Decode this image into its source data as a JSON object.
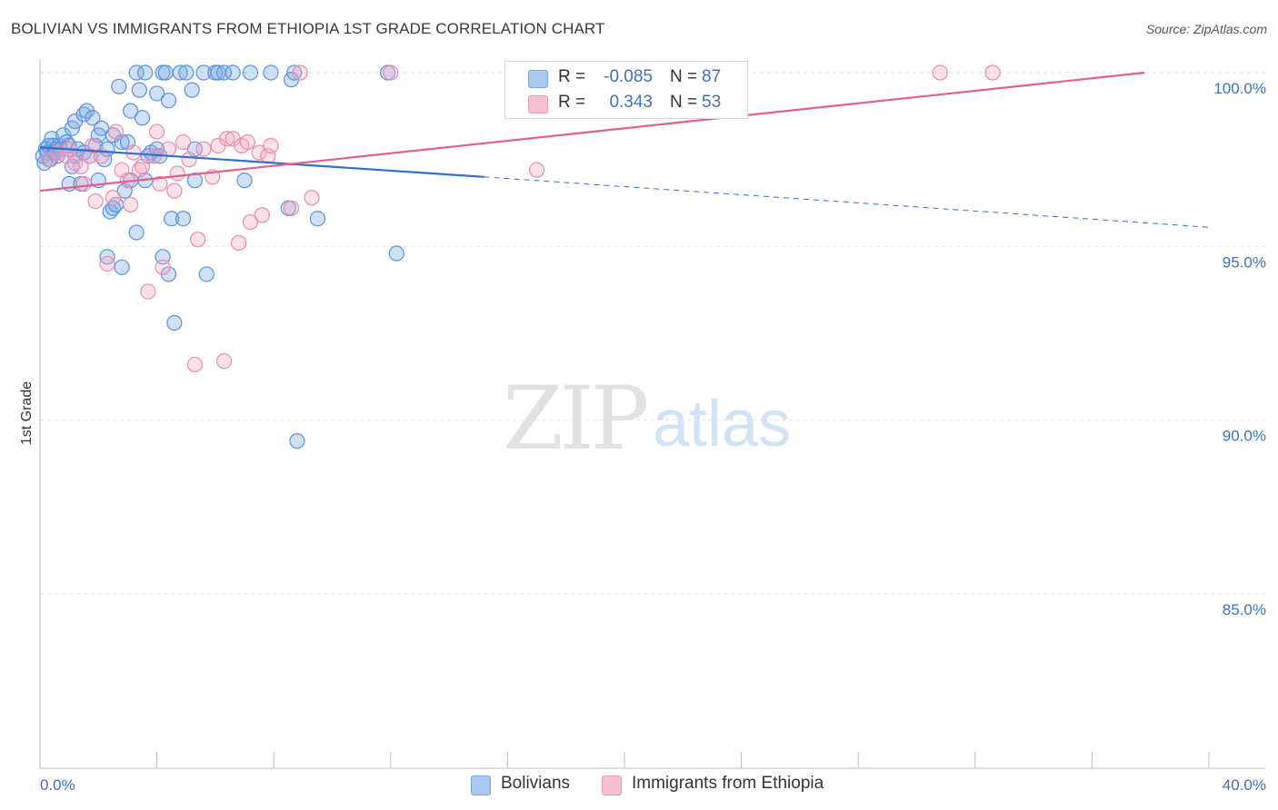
{
  "header": {
    "title": "BOLIVIAN VS IMMIGRANTS FROM ETHIOPIA 1ST GRADE CORRELATION CHART",
    "source": "Source: ZipAtlas.com"
  },
  "watermark": {
    "zip": "ZIP",
    "atlas": "atlas"
  },
  "legend": {
    "rows": [
      {
        "r_label": "R =",
        "r_value": "-0.085",
        "n_label": "N =",
        "n_value": "87",
        "color": "#a9c8f0",
        "border": "#7aa6e0"
      },
      {
        "r_label": "R =",
        "r_value": "0.343",
        "n_label": "N =",
        "n_value": "53",
        "color": "#f7c0d2",
        "border": "#ee98b5"
      }
    ]
  },
  "bottom_legend": {
    "items": [
      {
        "label": "Bolivians",
        "color": "#a9c8f0",
        "border": "#7aa6e0"
      },
      {
        "label": "Immigrants from Ethiopia",
        "color": "#f7c0d2",
        "border": "#ee98b5"
      }
    ]
  },
  "chart_data": {
    "type": "scatter",
    "title": "BOLIVIAN VS IMMIGRANTS FROM ETHIOPIA 1ST GRADE CORRELATION CHART",
    "xlabel": "",
    "ylabel": "1st Grade",
    "xlim": [
      0,
      40
    ],
    "ylim": [
      80.8,
      100.5
    ],
    "x_tick_labels": [
      "0.0%",
      "40.0%"
    ],
    "y_ticks": [
      100,
      95,
      90,
      85
    ],
    "y_tick_labels": [
      "100.0%",
      "95.0%",
      "90.0%",
      "85.0%"
    ],
    "grid": true,
    "series": [
      {
        "name": "Bolivians",
        "color": "#4a86d8",
        "fill": "rgba(120,168,230,0.35)",
        "stroke": "#5b92dc",
        "trend": {
          "x0": 0,
          "y0": 97.85,
          "x1": 15.2,
          "y1": 97.0,
          "dash_to_x": 40,
          "dash_to_y": 95.55,
          "color": "#2f6fcf"
        },
        "points": [
          [
            0.1,
            97.6
          ],
          [
            0.15,
            97.4
          ],
          [
            0.2,
            97.8
          ],
          [
            0.25,
            97.7
          ],
          [
            0.3,
            97.9
          ],
          [
            0.35,
            97.5
          ],
          [
            0.4,
            98.1
          ],
          [
            0.45,
            97.9
          ],
          [
            0.5,
            97.7
          ],
          [
            0.55,
            97.8
          ],
          [
            0.6,
            97.6
          ],
          [
            0.65,
            97.9
          ],
          [
            0.7,
            97.8
          ],
          [
            0.8,
            98.2
          ],
          [
            0.9,
            98.0
          ],
          [
            1.0,
            97.9
          ],
          [
            1.0,
            96.8
          ],
          [
            1.1,
            97.3
          ],
          [
            1.1,
            98.4
          ],
          [
            1.2,
            98.6
          ],
          [
            1.2,
            97.6
          ],
          [
            1.3,
            97.8
          ],
          [
            1.4,
            96.8
          ],
          [
            1.5,
            98.8
          ],
          [
            1.5,
            97.7
          ],
          [
            1.6,
            98.9
          ],
          [
            1.7,
            97.6
          ],
          [
            1.8,
            98.7
          ],
          [
            1.9,
            97.9
          ],
          [
            2.0,
            98.2
          ],
          [
            2.0,
            96.9
          ],
          [
            2.1,
            98.4
          ],
          [
            2.2,
            97.5
          ],
          [
            2.3,
            97.8
          ],
          [
            2.3,
            94.7
          ],
          [
            2.4,
            96.0
          ],
          [
            2.5,
            98.2
          ],
          [
            2.5,
            96.1
          ],
          [
            2.6,
            96.2
          ],
          [
            2.7,
            99.6
          ],
          [
            2.8,
            94.4
          ],
          [
            2.8,
            98.0
          ],
          [
            2.9,
            96.6
          ],
          [
            3.0,
            98.0
          ],
          [
            3.1,
            98.9
          ],
          [
            3.1,
            96.9
          ],
          [
            3.3,
            95.4
          ],
          [
            3.3,
            100.0
          ],
          [
            3.4,
            99.5
          ],
          [
            3.5,
            98.7
          ],
          [
            3.6,
            100.0
          ],
          [
            3.6,
            96.9
          ],
          [
            3.7,
            97.6
          ],
          [
            3.8,
            97.7
          ],
          [
            3.9,
            97.6
          ],
          [
            4.0,
            97.8
          ],
          [
            4.0,
            99.4
          ],
          [
            4.1,
            97.6
          ],
          [
            4.2,
            100.0
          ],
          [
            4.2,
            94.7
          ],
          [
            4.3,
            100.0
          ],
          [
            4.4,
            94.2
          ],
          [
            4.4,
            99.2
          ],
          [
            4.5,
            95.8
          ],
          [
            4.6,
            92.8
          ],
          [
            4.8,
            100.0
          ],
          [
            4.9,
            95.8
          ],
          [
            5.0,
            100.0
          ],
          [
            5.2,
            99.5
          ],
          [
            5.3,
            97.8
          ],
          [
            5.3,
            96.9
          ],
          [
            5.6,
            100.0
          ],
          [
            5.7,
            94.2
          ],
          [
            6.0,
            100.0
          ],
          [
            6.1,
            100.0
          ],
          [
            6.3,
            100.0
          ],
          [
            6.6,
            100.0
          ],
          [
            7.0,
            96.9
          ],
          [
            7.2,
            100.0
          ],
          [
            7.9,
            100.0
          ],
          [
            8.5,
            96.1
          ],
          [
            8.6,
            99.8
          ],
          [
            8.7,
            100.0
          ],
          [
            8.8,
            89.4
          ],
          [
            9.5,
            95.8
          ],
          [
            11.9,
            100.0
          ],
          [
            12.2,
            94.8
          ]
        ]
      },
      {
        "name": "Immigrants from Ethiopia",
        "color": "#e05a8a",
        "fill": "rgba(244,170,196,0.35)",
        "stroke": "#ea8aac",
        "trend": {
          "x0": 0,
          "y0": 96.6,
          "x1": 37.8,
          "y1": 100.0,
          "color": "#e0608e"
        },
        "points": [
          [
            0.3,
            97.5
          ],
          [
            0.6,
            97.7
          ],
          [
            0.9,
            97.6
          ],
          [
            1.0,
            97.8
          ],
          [
            1.2,
            97.4
          ],
          [
            1.4,
            97.3
          ],
          [
            1.5,
            96.8
          ],
          [
            1.7,
            97.6
          ],
          [
            1.8,
            97.9
          ],
          [
            1.9,
            96.3
          ],
          [
            2.1,
            97.6
          ],
          [
            2.3,
            94.5
          ],
          [
            2.5,
            96.4
          ],
          [
            2.6,
            98.3
          ],
          [
            2.8,
            97.2
          ],
          [
            3.0,
            96.9
          ],
          [
            3.1,
            96.2
          ],
          [
            3.2,
            97.7
          ],
          [
            3.4,
            97.2
          ],
          [
            3.5,
            97.3
          ],
          [
            3.7,
            93.7
          ],
          [
            3.9,
            97.6
          ],
          [
            4.0,
            98.3
          ],
          [
            4.1,
            96.8
          ],
          [
            4.2,
            94.4
          ],
          [
            4.4,
            97.8
          ],
          [
            4.6,
            96.6
          ],
          [
            4.7,
            97.1
          ],
          [
            4.9,
            98.0
          ],
          [
            5.1,
            97.5
          ],
          [
            5.3,
            91.6
          ],
          [
            5.4,
            95.2
          ],
          [
            5.6,
            97.8
          ],
          [
            5.9,
            97.0
          ],
          [
            6.1,
            97.9
          ],
          [
            6.3,
            91.7
          ],
          [
            6.4,
            98.1
          ],
          [
            6.6,
            98.1
          ],
          [
            6.8,
            95.1
          ],
          [
            6.9,
            97.9
          ],
          [
            7.1,
            98.0
          ],
          [
            7.2,
            95.7
          ],
          [
            7.5,
            97.7
          ],
          [
            7.6,
            95.9
          ],
          [
            7.8,
            97.6
          ],
          [
            7.9,
            97.9
          ],
          [
            8.6,
            96.1
          ],
          [
            8.9,
            100.0
          ],
          [
            9.3,
            96.4
          ],
          [
            12.0,
            100.0
          ],
          [
            17.0,
            97.2
          ],
          [
            30.8,
            100.0
          ],
          [
            32.6,
            100.0
          ]
        ]
      }
    ]
  }
}
